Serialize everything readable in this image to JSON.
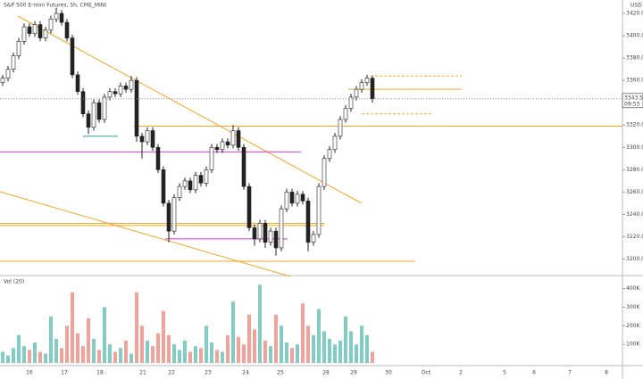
{
  "chart_data": [
    {
      "type": "candlestick",
      "title": "S&P 500 E-mini Futures, 5h, CME_MINI",
      "currency": "USD",
      "open": [
        3358,
        3362,
        3370,
        3382,
        3395,
        3408,
        3402,
        3410,
        3398,
        3405,
        3415,
        3420,
        3412,
        3398,
        3365,
        3350,
        3330,
        3318,
        3340,
        3325,
        3345,
        3350,
        3348,
        3355,
        3352,
        3360,
        3310,
        3305,
        3315,
        3300,
        3280,
        3250,
        3225,
        3255,
        3265,
        3270,
        3262,
        3275,
        3268,
        3280,
        3300,
        3298,
        3305,
        3302,
        3315,
        3300,
        3265,
        3228,
        3218,
        3232,
        3215,
        3225,
        3210,
        3245,
        3260,
        3250,
        3258,
        3252,
        3215,
        3222,
        3265,
        3290,
        3298,
        3310,
        3325,
        3335,
        3345,
        3352,
        3358,
        3362
      ],
      "high": [
        3365,
        3373,
        3385,
        3398,
        3411,
        3411,
        3413,
        3413,
        3408,
        3418,
        3425,
        3423,
        3415,
        3401,
        3368,
        3353,
        3333,
        3343,
        3343,
        3348,
        3353,
        3353,
        3358,
        3358,
        3364,
        3363,
        3313,
        3318,
        3318,
        3303,
        3283,
        3253,
        3258,
        3268,
        3273,
        3273,
        3278,
        3278,
        3283,
        3303,
        3303,
        3308,
        3308,
        3320,
        3318,
        3303,
        3268,
        3231,
        3235,
        3235,
        3228,
        3228,
        3248,
        3263,
        3263,
        3261,
        3261,
        3255,
        3225,
        3268,
        3293,
        3301,
        3313,
        3328,
        3338,
        3348,
        3355,
        3361,
        3365,
        3364
      ],
      "low": [
        3355,
        3359,
        3367,
        3379,
        3392,
        3399,
        3399,
        3395,
        3395,
        3402,
        3412,
        3409,
        3395,
        3362,
        3347,
        3327,
        3312,
        3315,
        3322,
        3322,
        3342,
        3345,
        3345,
        3349,
        3349,
        3305,
        3290,
        3302,
        3297,
        3277,
        3247,
        3215,
        3222,
        3252,
        3262,
        3259,
        3259,
        3265,
        3265,
        3277,
        3295,
        3295,
        3299,
        3299,
        3297,
        3262,
        3225,
        3212,
        3215,
        3210,
        3212,
        3203,
        3207,
        3242,
        3247,
        3247,
        3249,
        3207,
        3212,
        3219,
        3262,
        3287,
        3295,
        3307,
        3322,
        3332,
        3342,
        3349,
        3355,
        3340
      ],
      "close": [
        3362,
        3370,
        3382,
        3395,
        3408,
        3402,
        3410,
        3398,
        3405,
        3415,
        3420,
        3412,
        3398,
        3365,
        3350,
        3330,
        3318,
        3340,
        3325,
        3345,
        3350,
        3348,
        3355,
        3352,
        3360,
        3310,
        3305,
        3315,
        3300,
        3280,
        3250,
        3225,
        3255,
        3265,
        3270,
        3262,
        3275,
        3268,
        3280,
        3300,
        3298,
        3305,
        3302,
        3315,
        3300,
        3265,
        3228,
        3218,
        3232,
        3215,
        3225,
        3210,
        3245,
        3260,
        3250,
        3258,
        3252,
        3215,
        3222,
        3265,
        3290,
        3298,
        3310,
        3325,
        3335,
        3345,
        3352,
        3358,
        3362,
        3343.5
      ],
      "last_label": "3343.50",
      "countdown": "09:53",
      "xtick_labels": [
        "16",
        "17",
        "18",
        "21",
        "22",
        "23",
        "24",
        "25",
        "28",
        "29",
        "30",
        "Oct",
        "2",
        "5",
        "6",
        "7",
        "8"
      ],
      "ylim": [
        3186,
        3432
      ],
      "yticks": [
        {
          "value": 3200,
          "label": "3200.00"
        },
        {
          "value": 3220,
          "label": "3220.00"
        },
        {
          "value": 3240,
          "label": "3240.00"
        },
        {
          "value": 3260,
          "label": "3260.00"
        },
        {
          "value": 3280,
          "label": "3280.00"
        },
        {
          "value": 3300,
          "label": "3300.00"
        },
        {
          "value": 3320,
          "label": "3320.00"
        },
        {
          "value": 3340,
          "label": "3340.00"
        },
        {
          "value": 3360,
          "label": "3360.00"
        },
        {
          "value": 3380,
          "label": "3380.00"
        },
        {
          "value": 3400,
          "label": "3400.00"
        },
        {
          "value": 3420,
          "label": "3420.00"
        }
      ],
      "levels": [
        {
          "value": 3319,
          "color": "#f5a623"
        },
        {
          "value": 3296,
          "color": "#d633d6"
        },
        {
          "value": 3232,
          "color": "#f5a623"
        },
        {
          "value": 3230,
          "color": "#f5a623"
        },
        {
          "value": 3218,
          "color": "#d633d6"
        },
        {
          "value": 3198,
          "color": "#f5a623"
        },
        {
          "value": 3310,
          "color": "#26a69a"
        },
        {
          "value": 3352,
          "color": "#f5a623"
        },
        {
          "value": 3364,
          "color": "#f5a623",
          "dashed": true
        },
        {
          "value": 3330,
          "color": "#f5a623",
          "dashed": true
        }
      ]
    },
    {
      "type": "volume",
      "title": "Vol (20)",
      "up_color": "#7fcdc4",
      "down_color": "#f4a19a",
      "values": [
        60000,
        40000,
        80000,
        150000,
        90000,
        70000,
        110000,
        60000,
        50000,
        250000,
        130000,
        80000,
        200000,
        380000,
        160000,
        90000,
        240000,
        130000,
        70000,
        300000,
        100000,
        60000,
        80000,
        120000,
        50000,
        380000,
        200000,
        120000,
        90000,
        160000,
        280000,
        150000,
        100000,
        70000,
        120000,
        60000,
        90000,
        80000,
        200000,
        110000,
        70000,
        60000,
        150000,
        330000,
        140000,
        100000,
        260000,
        180000,
        420000,
        120000,
        90000,
        260000,
        200000,
        110000,
        80000,
        100000,
        320000,
        200000,
        150000,
        290000,
        170000,
        130000,
        100000,
        120000,
        250000,
        170000,
        100000,
        200000,
        150000,
        60000
      ],
      "ylim": [
        0,
        465000
      ],
      "yticks": [
        {
          "value": 100000,
          "label": "100K"
        },
        {
          "value": 200000,
          "label": "200K"
        },
        {
          "value": 300000,
          "label": "300K"
        },
        {
          "value": 400000,
          "label": "400K"
        }
      ]
    }
  ]
}
